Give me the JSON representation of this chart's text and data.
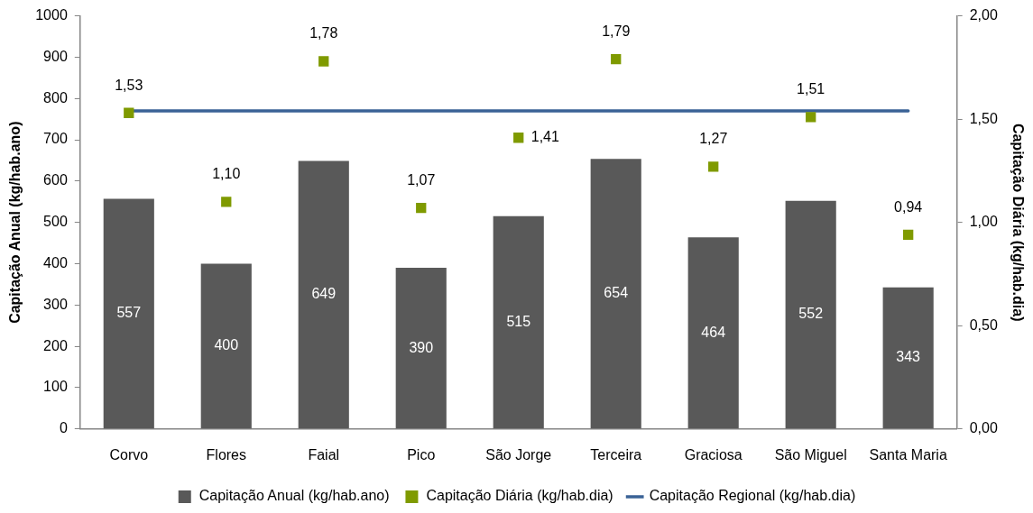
{
  "chart_data": {
    "type": "bar",
    "categories": [
      "Corvo",
      "Flores",
      "Faial",
      "Pico",
      "São Jorge",
      "Terceira",
      "Graciosa",
      "São Miguel",
      "Santa Maria"
    ],
    "ylabel": "Capitação Anual (kg/hab.ano)",
    "y2label": "Capitação Diária (kg/hab.dia)",
    "ylim": [
      0,
      1000
    ],
    "yticks": [
      0,
      100,
      200,
      300,
      400,
      500,
      600,
      700,
      800,
      900,
      1000
    ],
    "y2lim": [
      0,
      2
    ],
    "y2ticks": [
      {
        "value": 0,
        "label": "0,00"
      },
      {
        "value": 0.5,
        "label": "0,50"
      },
      {
        "value": 1,
        "label": "1,00"
      },
      {
        "value": 1.5,
        "label": "1,50"
      },
      {
        "value": 2,
        "label": "2,00"
      }
    ],
    "legend": "bottom",
    "series": [
      {
        "name": "Capitação Anual (kg/hab.ano)",
        "type": "bar",
        "color": "#595959",
        "values": [
          557,
          400,
          649,
          390,
          515,
          654,
          464,
          552,
          343
        ],
        "value_labels": [
          "557",
          "400",
          "649",
          "390",
          "515",
          "654",
          "464",
          "552",
          "343"
        ]
      },
      {
        "name": "Capitação Diária (kg/hab.dia)",
        "type": "scatter",
        "axis": "y2",
        "marker": "square",
        "color": "#7f9a00",
        "x": [
          "Corvo",
          "Flores",
          "Faial",
          "Pico",
          "São Jorge",
          "Terceira",
          "Graciosa",
          "São Miguel",
          "Santa Maria"
        ],
        "values": [
          1.53,
          1.1,
          1.78,
          1.07,
          1.41,
          1.79,
          1.27,
          1.51,
          0.94
        ],
        "value_labels": [
          "1,53",
          "1,10",
          "1,78",
          "1,07",
          "1,41",
          "1,79",
          "1,27",
          "1,51",
          "0,94"
        ]
      },
      {
        "name": "Capitação Regional (kg/hab.dia)",
        "type": "line",
        "axis": "y2",
        "color": "#3a6296",
        "values": [
          1.54,
          1.54,
          1.54,
          1.54,
          1.54,
          1.54,
          1.54,
          1.54,
          1.54
        ]
      }
    ]
  }
}
